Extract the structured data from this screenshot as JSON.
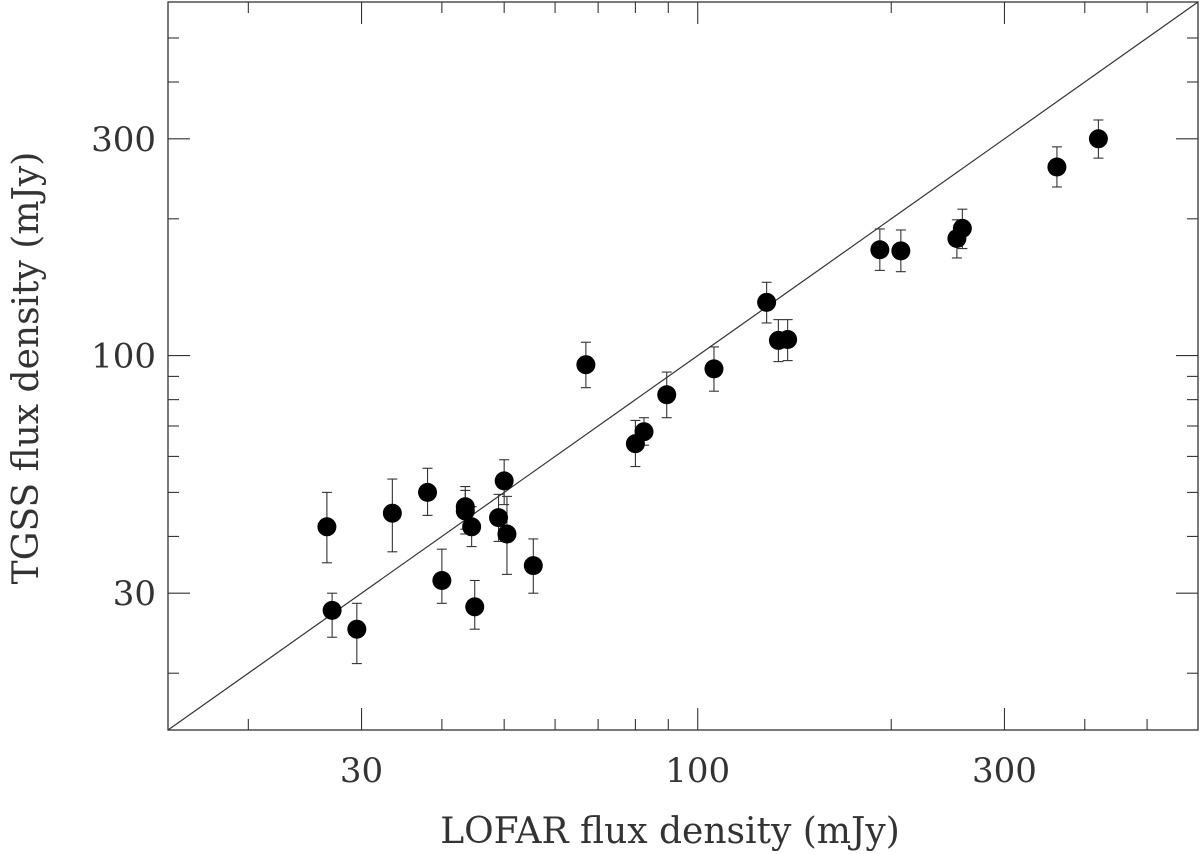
{
  "chart_data": {
    "type": "scatter",
    "xlabel": "LOFAR flux density (mJy)",
    "ylabel": "TGSS flux density (mJy)",
    "x_scale": "log",
    "y_scale": "log",
    "xlim": [
      15,
      600
    ],
    "ylim": [
      15,
      600
    ],
    "x_tick_labels": [
      "30",
      "100",
      "300"
    ],
    "y_tick_labels": [
      "30",
      "100",
      "300"
    ],
    "grid": false,
    "reference_line": "y = x",
    "points": [
      {
        "x": 26.5,
        "y": 42,
        "y_err_low": 35,
        "y_err_high": 50
      },
      {
        "x": 27.0,
        "y": 27.5,
        "y_err_low": 24,
        "y_err_high": 30
      },
      {
        "x": 29.5,
        "y": 25,
        "y_err_low": 21,
        "y_err_high": 28.5
      },
      {
        "x": 33.5,
        "y": 45,
        "y_err_low": 37,
        "y_err_high": 53.5
      },
      {
        "x": 38.0,
        "y": 50,
        "y_err_low": 44.5,
        "y_err_high": 56.5
      },
      {
        "x": 40.0,
        "y": 32,
        "y_err_low": 28.5,
        "y_err_high": 37.5
      },
      {
        "x": 43.5,
        "y": 46.5,
        "y_err_low": 41.5,
        "y_err_high": 51.5
      },
      {
        "x": 43.5,
        "y": 45.5,
        "y_err_low": 40.5,
        "y_err_high": 50.5
      },
      {
        "x": 44.5,
        "y": 42,
        "y_err_low": 38,
        "y_err_high": 46.5
      },
      {
        "x": 45.0,
        "y": 28,
        "y_err_low": 25,
        "y_err_high": 32
      },
      {
        "x": 49.0,
        "y": 44,
        "y_err_low": 39,
        "y_err_high": 49.5
      },
      {
        "x": 50.0,
        "y": 53,
        "y_err_low": 47,
        "y_err_high": 59
      },
      {
        "x": 50.5,
        "y": 40.5,
        "y_err_low": 33,
        "y_err_high": 49
      },
      {
        "x": 55.5,
        "y": 34.5,
        "y_err_low": 30,
        "y_err_high": 39.5
      },
      {
        "x": 67.0,
        "y": 95.5,
        "y_err_low": 85,
        "y_err_high": 107
      },
      {
        "x": 80.0,
        "y": 64,
        "y_err_low": 57,
        "y_err_high": 72
      },
      {
        "x": 82.5,
        "y": 68,
        "y_err_low": 63.5,
        "y_err_high": 73
      },
      {
        "x": 89.5,
        "y": 82,
        "y_err_low": 73,
        "y_err_high": 92
      },
      {
        "x": 106.0,
        "y": 93.5,
        "y_err_low": 83.5,
        "y_err_high": 104.5
      },
      {
        "x": 128.0,
        "y": 131,
        "y_err_low": 118,
        "y_err_high": 145
      },
      {
        "x": 133.5,
        "y": 108,
        "y_err_low": 97,
        "y_err_high": 120
      },
      {
        "x": 138.0,
        "y": 108.5,
        "y_err_low": 97.5,
        "y_err_high": 120
      },
      {
        "x": 192.0,
        "y": 171,
        "y_err_low": 154,
        "y_err_high": 190
      },
      {
        "x": 207.0,
        "y": 170,
        "y_err_low": 153,
        "y_err_high": 189
      },
      {
        "x": 253.0,
        "y": 181,
        "y_err_low": 164,
        "y_err_high": 199
      },
      {
        "x": 258.0,
        "y": 190.5,
        "y_err_low": 172,
        "y_err_high": 210
      },
      {
        "x": 362.0,
        "y": 260,
        "y_err_low": 235,
        "y_err_high": 288
      },
      {
        "x": 420.0,
        "y": 300,
        "y_err_low": 272,
        "y_err_high": 330
      }
    ]
  }
}
